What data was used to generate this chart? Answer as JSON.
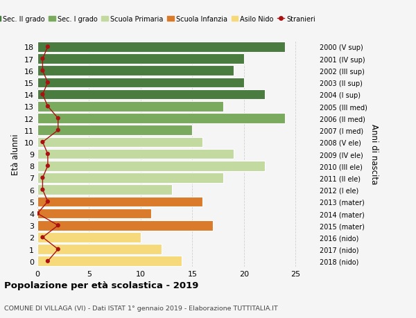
{
  "ages": [
    18,
    17,
    16,
    15,
    14,
    13,
    12,
    11,
    10,
    9,
    8,
    7,
    6,
    5,
    4,
    3,
    2,
    1,
    0
  ],
  "right_labels": [
    "2000 (V sup)",
    "2001 (IV sup)",
    "2002 (III sup)",
    "2003 (II sup)",
    "2004 (I sup)",
    "2005 (III med)",
    "2006 (II med)",
    "2007 (I med)",
    "2008 (V ele)",
    "2009 (IV ele)",
    "2010 (III ele)",
    "2011 (II ele)",
    "2012 (I ele)",
    "2013 (mater)",
    "2014 (mater)",
    "2015 (mater)",
    "2016 (nido)",
    "2017 (nido)",
    "2018 (nido)"
  ],
  "bar_values": [
    24,
    20,
    19,
    20,
    22,
    18,
    24,
    15,
    16,
    19,
    22,
    18,
    13,
    16,
    11,
    17,
    10,
    12,
    14
  ],
  "bar_colors": [
    "#4a7c3f",
    "#4a7c3f",
    "#4a7c3f",
    "#4a7c3f",
    "#4a7c3f",
    "#7aaa5e",
    "#7aaa5e",
    "#7aaa5e",
    "#c2d9a0",
    "#c2d9a0",
    "#c2d9a0",
    "#c2d9a0",
    "#c2d9a0",
    "#d97b2a",
    "#d97b2a",
    "#d97b2a",
    "#f5d97a",
    "#f5d97a",
    "#f5d97a"
  ],
  "stranieri_x": [
    1.0,
    0.5,
    0.5,
    1.0,
    0.5,
    1.0,
    2.0,
    2.0,
    0.5,
    1.0,
    1.0,
    0.5,
    0.5,
    1.0,
    0.0,
    2.0,
    0.5,
    2.0,
    1.0
  ],
  "title": "Popolazione per età scolastica - 2019",
  "subtitle": "COMUNE DI VILLAGA (VI) - Dati ISTAT 1° gennaio 2019 - Elaborazione TUTTITALIA.IT",
  "ylabel": "Età alunni",
  "right_ylabel": "Anni di nascita",
  "xlim": [
    0,
    27
  ],
  "xticks": [
    0,
    5,
    10,
    15,
    20,
    25
  ],
  "legend_labels": [
    "Sec. II grado",
    "Sec. I grado",
    "Scuola Primaria",
    "Scuola Infanzia",
    "Asilo Nido",
    "Stranieri"
  ],
  "legend_colors": [
    "#4a7c3f",
    "#7aaa5e",
    "#c2d9a0",
    "#d97b2a",
    "#f5d97a",
    "#aa1111"
  ],
  "bar_height": 0.85,
  "bg_color": "#f5f5f5",
  "grid_color": "#d0d0d0",
  "stranieri_line_color": "#aa1111",
  "stranieri_dot_color": "#aa1111"
}
